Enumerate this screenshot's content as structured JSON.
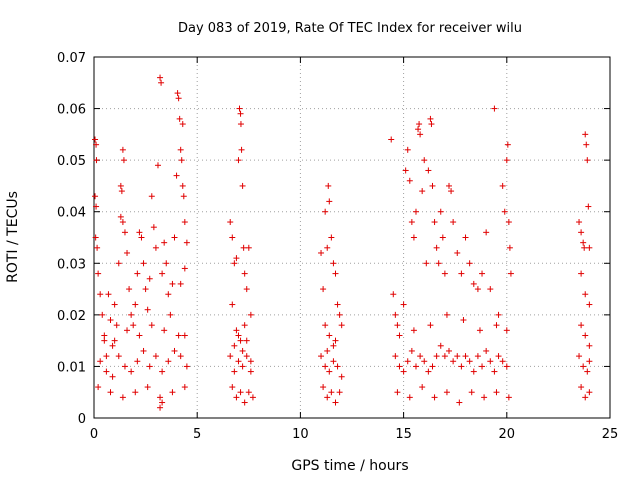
{
  "chart_data": {
    "type": "scatter",
    "title": "Day 083 of 2019, Rate Of TEC Index for receiver wilu",
    "xlabel": "GPS time / hours",
    "ylabel": "ROTI / TECUs",
    "xlim": [
      0,
      25
    ],
    "ylim": [
      0,
      0.07
    ],
    "x_ticks": [
      "0",
      "5",
      "10",
      "15",
      "20",
      "25"
    ],
    "y_ticks": [
      "0",
      "0.01",
      "0.02",
      "0.03",
      "0.04",
      "0.05",
      "0.06",
      "0.07"
    ],
    "grid": true,
    "marker": "+",
    "color": "#e00000",
    "series": [
      {
        "points": [
          [
            0.05,
            0.054
          ],
          [
            0.1,
            0.053
          ],
          [
            0.12,
            0.05
          ],
          [
            0.05,
            0.043
          ],
          [
            0.1,
            0.041
          ],
          [
            0.08,
            0.035
          ],
          [
            0.15,
            0.033
          ],
          [
            0.2,
            0.028
          ],
          [
            0.3,
            0.024
          ],
          [
            0.4,
            0.02
          ],
          [
            0.5,
            0.015
          ],
          [
            0.6,
            0.012
          ],
          [
            0.7,
            0.024
          ],
          [
            0.8,
            0.019
          ],
          [
            0.9,
            0.014
          ],
          [
            1.0,
            0.022
          ],
          [
            1.1,
            0.018
          ],
          [
            1.2,
            0.03
          ],
          [
            1.3,
            0.045
          ],
          [
            1.35,
            0.044
          ],
          [
            1.4,
            0.052
          ],
          [
            1.45,
            0.05
          ],
          [
            1.3,
            0.039
          ],
          [
            1.4,
            0.038
          ],
          [
            1.5,
            0.036
          ],
          [
            1.6,
            0.032
          ],
          [
            1.7,
            0.025
          ],
          [
            1.8,
            0.02
          ],
          [
            1.9,
            0.018
          ],
          [
            2.0,
            0.022
          ],
          [
            2.1,
            0.028
          ],
          [
            2.2,
            0.036
          ],
          [
            2.3,
            0.035
          ],
          [
            2.4,
            0.03
          ],
          [
            2.5,
            0.025
          ],
          [
            2.6,
            0.021
          ],
          [
            2.7,
            0.027
          ],
          [
            2.8,
            0.043
          ],
          [
            2.9,
            0.037
          ],
          [
            3.0,
            0.033
          ],
          [
            3.1,
            0.049
          ],
          [
            3.2,
            0.066
          ],
          [
            3.25,
            0.065
          ],
          [
            3.3,
            0.028
          ],
          [
            3.4,
            0.034
          ],
          [
            3.5,
            0.03
          ],
          [
            3.6,
            0.024
          ],
          [
            3.7,
            0.02
          ],
          [
            3.8,
            0.026
          ],
          [
            3.9,
            0.035
          ],
          [
            4.0,
            0.047
          ],
          [
            4.05,
            0.063
          ],
          [
            4.1,
            0.062
          ],
          [
            4.15,
            0.058
          ],
          [
            4.2,
            0.052
          ],
          [
            4.3,
            0.057
          ],
          [
            4.25,
            0.05
          ],
          [
            4.3,
            0.045
          ],
          [
            4.35,
            0.043
          ],
          [
            4.4,
            0.038
          ],
          [
            4.5,
            0.034
          ],
          [
            4.4,
            0.029
          ],
          [
            4.2,
            0.026
          ],
          [
            0.3,
            0.011
          ],
          [
            0.6,
            0.009
          ],
          [
            0.9,
            0.008
          ],
          [
            1.2,
            0.012
          ],
          [
            1.5,
            0.01
          ],
          [
            1.8,
            0.009
          ],
          [
            2.1,
            0.011
          ],
          [
            2.4,
            0.013
          ],
          [
            2.7,
            0.01
          ],
          [
            3.0,
            0.012
          ],
          [
            3.3,
            0.009
          ],
          [
            3.6,
            0.011
          ],
          [
            3.9,
            0.013
          ],
          [
            4.2,
            0.012
          ],
          [
            4.5,
            0.01
          ],
          [
            0.2,
            0.006
          ],
          [
            0.8,
            0.005
          ],
          [
            1.4,
            0.004
          ],
          [
            2.0,
            0.005
          ],
          [
            2.6,
            0.006
          ],
          [
            3.2,
            0.004
          ],
          [
            3.8,
            0.005
          ],
          [
            4.4,
            0.006
          ],
          [
            3.2,
            0.002
          ],
          [
            3.3,
            0.003
          ],
          [
            0.5,
            0.016
          ],
          [
            1.0,
            0.015
          ],
          [
            1.6,
            0.017
          ],
          [
            2.2,
            0.016
          ],
          [
            2.8,
            0.018
          ],
          [
            3.4,
            0.017
          ],
          [
            4.1,
            0.016
          ],
          [
            4.4,
            0.016
          ],
          [
            6.6,
            0.038
          ],
          [
            6.7,
            0.035
          ],
          [
            6.8,
            0.03
          ],
          [
            6.9,
            0.031
          ],
          [
            7.0,
            0.05
          ],
          [
            7.05,
            0.06
          ],
          [
            7.1,
            0.059
          ],
          [
            7.12,
            0.057
          ],
          [
            7.15,
            0.052
          ],
          [
            7.2,
            0.045
          ],
          [
            7.25,
            0.033
          ],
          [
            7.3,
            0.028
          ],
          [
            7.4,
            0.025
          ],
          [
            7.5,
            0.033
          ],
          [
            7.6,
            0.02
          ],
          [
            6.7,
            0.022
          ],
          [
            6.9,
            0.017
          ],
          [
            7.1,
            0.015
          ],
          [
            7.3,
            0.018
          ],
          [
            6.6,
            0.012
          ],
          [
            6.8,
            0.009
          ],
          [
            7.0,
            0.011
          ],
          [
            7.2,
            0.01
          ],
          [
            7.4,
            0.012
          ],
          [
            7.6,
            0.009
          ],
          [
            6.7,
            0.006
          ],
          [
            6.9,
            0.004
          ],
          [
            7.1,
            0.005
          ],
          [
            7.3,
            0.003
          ],
          [
            7.5,
            0.005
          ],
          [
            7.7,
            0.004
          ],
          [
            6.8,
            0.014
          ],
          [
            7.0,
            0.016
          ],
          [
            7.2,
            0.013
          ],
          [
            7.4,
            0.015
          ],
          [
            7.6,
            0.011
          ],
          [
            11.0,
            0.032
          ],
          [
            11.1,
            0.025
          ],
          [
            11.2,
            0.04
          ],
          [
            11.3,
            0.033
          ],
          [
            11.35,
            0.045
          ],
          [
            11.4,
            0.042
          ],
          [
            11.5,
            0.035
          ],
          [
            11.6,
            0.03
          ],
          [
            11.7,
            0.028
          ],
          [
            11.8,
            0.022
          ],
          [
            11.9,
            0.02
          ],
          [
            12.0,
            0.018
          ],
          [
            11.2,
            0.018
          ],
          [
            11.4,
            0.016
          ],
          [
            11.6,
            0.014
          ],
          [
            11.0,
            0.012
          ],
          [
            11.2,
            0.01
          ],
          [
            11.4,
            0.009
          ],
          [
            11.6,
            0.011
          ],
          [
            11.8,
            0.01
          ],
          [
            12.0,
            0.008
          ],
          [
            11.1,
            0.006
          ],
          [
            11.3,
            0.004
          ],
          [
            11.5,
            0.005
          ],
          [
            11.7,
            0.003
          ],
          [
            11.9,
            0.005
          ],
          [
            11.3,
            0.013
          ],
          [
            11.7,
            0.015
          ],
          [
            14.4,
            0.054
          ],
          [
            14.5,
            0.024
          ],
          [
            14.6,
            0.02
          ],
          [
            14.7,
            0.018
          ],
          [
            14.8,
            0.016
          ],
          [
            15.0,
            0.022
          ],
          [
            15.1,
            0.048
          ],
          [
            15.2,
            0.052
          ],
          [
            15.3,
            0.046
          ],
          [
            15.4,
            0.038
          ],
          [
            15.5,
            0.035
          ],
          [
            15.6,
            0.04
          ],
          [
            15.7,
            0.056
          ],
          [
            15.75,
            0.057
          ],
          [
            15.8,
            0.055
          ],
          [
            15.9,
            0.044
          ],
          [
            16.0,
            0.05
          ],
          [
            16.1,
            0.03
          ],
          [
            16.2,
            0.048
          ],
          [
            16.3,
            0.058
          ],
          [
            16.35,
            0.057
          ],
          [
            16.4,
            0.045
          ],
          [
            16.5,
            0.038
          ],
          [
            16.6,
            0.033
          ],
          [
            16.7,
            0.03
          ],
          [
            16.8,
            0.04
          ],
          [
            16.9,
            0.035
          ],
          [
            17.0,
            0.028
          ],
          [
            17.2,
            0.045
          ],
          [
            17.3,
            0.044
          ],
          [
            17.4,
            0.038
          ],
          [
            17.6,
            0.032
          ],
          [
            17.8,
            0.028
          ],
          [
            18.0,
            0.035
          ],
          [
            18.2,
            0.03
          ],
          [
            18.4,
            0.026
          ],
          [
            18.6,
            0.025
          ],
          [
            18.8,
            0.028
          ],
          [
            19.0,
            0.036
          ],
          [
            19.2,
            0.025
          ],
          [
            19.4,
            0.06
          ],
          [
            19.6,
            0.02
          ],
          [
            19.8,
            0.045
          ],
          [
            19.9,
            0.04
          ],
          [
            20.0,
            0.05
          ],
          [
            20.05,
            0.053
          ],
          [
            20.1,
            0.038
          ],
          [
            20.15,
            0.033
          ],
          [
            20.2,
            0.028
          ],
          [
            14.6,
            0.012
          ],
          [
            14.8,
            0.01
          ],
          [
            15.0,
            0.009
          ],
          [
            15.2,
            0.011
          ],
          [
            15.4,
            0.013
          ],
          [
            15.6,
            0.01
          ],
          [
            15.8,
            0.012
          ],
          [
            16.0,
            0.011
          ],
          [
            16.2,
            0.009
          ],
          [
            16.4,
            0.01
          ],
          [
            16.6,
            0.012
          ],
          [
            16.8,
            0.014
          ],
          [
            17.0,
            0.012
          ],
          [
            17.2,
            0.013
          ],
          [
            17.4,
            0.011
          ],
          [
            17.6,
            0.012
          ],
          [
            17.8,
            0.01
          ],
          [
            18.0,
            0.012
          ],
          [
            18.2,
            0.011
          ],
          [
            18.4,
            0.009
          ],
          [
            18.6,
            0.012
          ],
          [
            18.8,
            0.01
          ],
          [
            19.0,
            0.013
          ],
          [
            19.2,
            0.011
          ],
          [
            19.4,
            0.009
          ],
          [
            19.6,
            0.012
          ],
          [
            19.8,
            0.011
          ],
          [
            20.0,
            0.01
          ],
          [
            14.7,
            0.005
          ],
          [
            15.3,
            0.004
          ],
          [
            15.9,
            0.006
          ],
          [
            16.5,
            0.004
          ],
          [
            17.1,
            0.005
          ],
          [
            17.7,
            0.003
          ],
          [
            18.3,
            0.005
          ],
          [
            18.9,
            0.004
          ],
          [
            19.5,
            0.005
          ],
          [
            20.1,
            0.004
          ],
          [
            15.5,
            0.017
          ],
          [
            16.3,
            0.018
          ],
          [
            17.1,
            0.02
          ],
          [
            17.9,
            0.019
          ],
          [
            18.7,
            0.017
          ],
          [
            19.5,
            0.018
          ],
          [
            20.0,
            0.017
          ],
          [
            23.5,
            0.038
          ],
          [
            23.6,
            0.036
          ],
          [
            23.7,
            0.034
          ],
          [
            23.75,
            0.033
          ],
          [
            23.8,
            0.055
          ],
          [
            23.85,
            0.053
          ],
          [
            23.9,
            0.05
          ],
          [
            23.95,
            0.041
          ],
          [
            24.0,
            0.033
          ],
          [
            23.6,
            0.028
          ],
          [
            23.8,
            0.024
          ],
          [
            24.0,
            0.022
          ],
          [
            23.6,
            0.018
          ],
          [
            23.8,
            0.016
          ],
          [
            24.0,
            0.014
          ],
          [
            23.5,
            0.012
          ],
          [
            23.7,
            0.01
          ],
          [
            23.9,
            0.009
          ],
          [
            24.0,
            0.011
          ],
          [
            23.6,
            0.006
          ],
          [
            23.8,
            0.004
          ],
          [
            24.0,
            0.005
          ]
        ]
      }
    ]
  }
}
